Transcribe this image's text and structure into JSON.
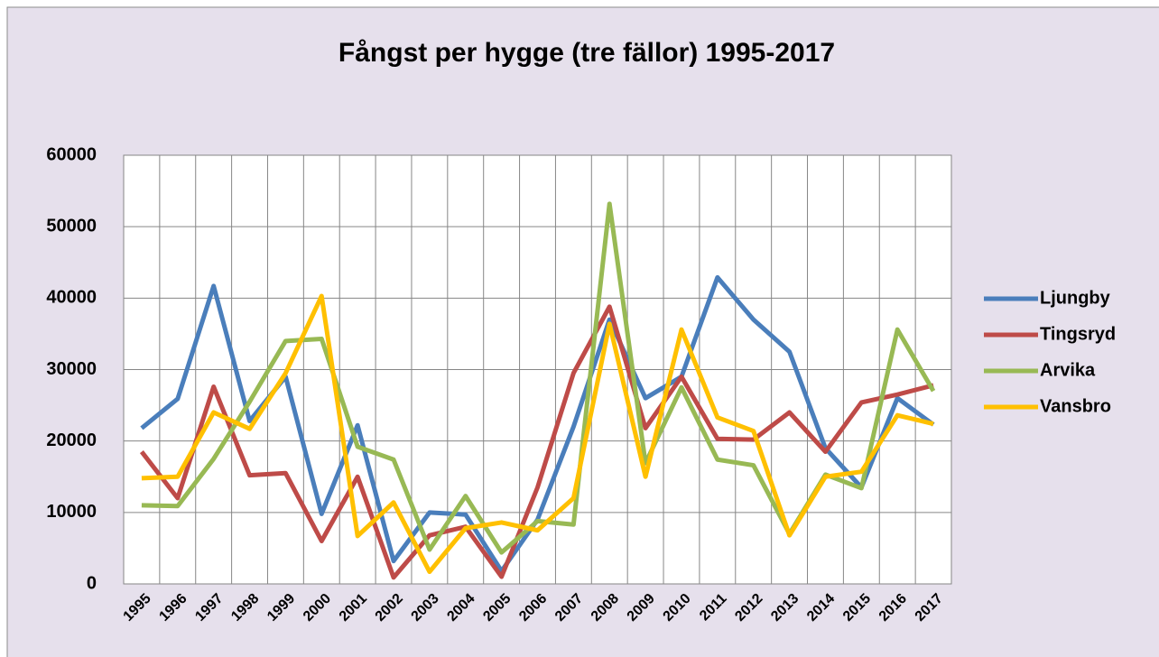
{
  "chart_data": {
    "type": "line",
    "title": "Fångst per hygge (tre fällor) 1995-2017",
    "categories": [
      "1995",
      "1996",
      "1997",
      "1998",
      "1999",
      "2000",
      "2001",
      "2002",
      "2003",
      "2004",
      "2005",
      "2006",
      "2007",
      "2008",
      "2009",
      "2010",
      "2011",
      "2012",
      "2013",
      "2014",
      "2015",
      "2016",
      "2017"
    ],
    "series": [
      {
        "name": "Ljungby",
        "color": "#4a7ebb",
        "values": [
          21800,
          25900,
          41700,
          22800,
          29000,
          9800,
          22200,
          3200,
          10000,
          9700,
          1800,
          9000,
          22000,
          37000,
          26000,
          29000,
          42900,
          37000,
          32500,
          19000,
          13500,
          26000,
          22300
        ]
      },
      {
        "name": "Tingsryd",
        "color": "#be4b48",
        "values": [
          18500,
          12000,
          27600,
          15200,
          15500,
          6000,
          15000,
          900,
          6800,
          8000,
          1000,
          13500,
          29500,
          38800,
          21800,
          29000,
          20300,
          20200,
          24000,
          18500,
          25400,
          26500,
          27800
        ]
      },
      {
        "name": "Arvika",
        "color": "#98b954",
        "values": [
          11000,
          10900,
          17500,
          25500,
          34000,
          34300,
          19200,
          17400,
          4800,
          12300,
          4400,
          8800,
          8300,
          53200,
          16900,
          27500,
          17400,
          16600,
          7000,
          15300,
          13400,
          35600,
          27000
        ]
      },
      {
        "name": "Vansbro",
        "color": "#ffc000",
        "values": [
          14800,
          15000,
          24000,
          21700,
          29500,
          40300,
          6700,
          11400,
          1700,
          7800,
          8600,
          7500,
          12000,
          36400,
          15000,
          35600,
          23300,
          21400,
          6800,
          15000,
          15700,
          23600,
          22400
        ]
      }
    ],
    "ylim": [
      0,
      60000
    ],
    "yticks": [
      0,
      10000,
      20000,
      30000,
      40000,
      50000,
      60000
    ],
    "grid": true,
    "legend": "right"
  }
}
